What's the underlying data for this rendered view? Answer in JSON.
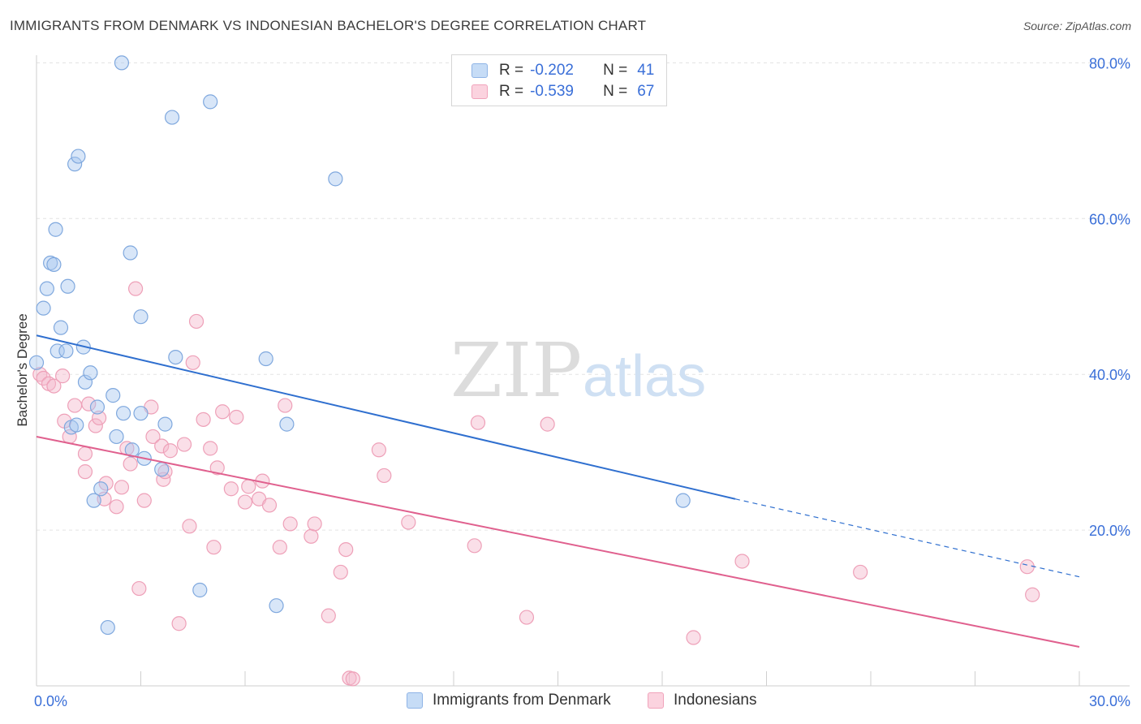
{
  "title": "IMMIGRANTS FROM DENMARK VS INDONESIAN BACHELOR'S DEGREE CORRELATION CHART",
  "source": "Source: ZipAtlas.com",
  "watermark": {
    "zip": "ZIP",
    "atlas": "atlas"
  },
  "legend": {
    "r_label": "R =",
    "n_label": "N =",
    "rows": [
      {
        "r": "-0.202",
        "n": "41",
        "color": "#a8c8f0"
      },
      {
        "r": "-0.539",
        "n": "67",
        "color": "#f5b8cb"
      }
    ]
  },
  "bottom_legend": [
    {
      "label": "Immigrants from Denmark",
      "color": "#a8c8f0"
    },
    {
      "label": "Indonesians",
      "color": "#f5b8cb"
    }
  ],
  "colors": {
    "blue_point": "#a8c8f0",
    "blue_line": "#2f6fcf",
    "pink_point": "#f5b8cb",
    "pink_line": "#e0608e",
    "axis_text": "#3a6fd8"
  },
  "chart_data": {
    "type": "scatter",
    "title": "IMMIGRANTS FROM DENMARK VS INDONESIAN BACHELOR'S DEGREE CORRELATION CHART",
    "xlabel": "",
    "ylabel": "Bachelor's Degree",
    "xlim": [
      0,
      30
    ],
    "ylim": [
      0,
      80
    ],
    "x_tick_labels": [
      "0.0%",
      "30.0%"
    ],
    "y_ticks": [
      20,
      40,
      60,
      80
    ],
    "y_tick_labels": [
      "20.0%",
      "40.0%",
      "60.0%",
      "80.0%"
    ],
    "grid": true,
    "legend_position": "top-center",
    "series": [
      {
        "name": "Immigrants from Denmark",
        "r": -0.202,
        "n": 41,
        "trend": {
          "x": [
            0,
            20.1
          ],
          "y": [
            45.0,
            24.0
          ],
          "dashed_to": [
            30,
            14.0
          ]
        },
        "points": [
          [
            0.0,
            41.5
          ],
          [
            0.2,
            48.5
          ],
          [
            0.3,
            51.0
          ],
          [
            0.4,
            54.3
          ],
          [
            0.5,
            54.1
          ],
          [
            0.55,
            58.6
          ],
          [
            0.7,
            46.0
          ],
          [
            0.6,
            43.0
          ],
          [
            0.85,
            43.0
          ],
          [
            0.9,
            51.3
          ],
          [
            1.1,
            67.0
          ],
          [
            1.2,
            68.0
          ],
          [
            1.35,
            43.5
          ],
          [
            1.4,
            39.0
          ],
          [
            1.55,
            40.2
          ],
          [
            1.0,
            33.2
          ],
          [
            1.15,
            33.5
          ],
          [
            1.75,
            35.8
          ],
          [
            1.85,
            25.3
          ],
          [
            1.65,
            23.8
          ],
          [
            2.2,
            37.3
          ],
          [
            2.3,
            32.0
          ],
          [
            2.45,
            80.0
          ],
          [
            2.5,
            35.0
          ],
          [
            2.75,
            30.3
          ],
          [
            2.7,
            55.6
          ],
          [
            3.0,
            47.4
          ],
          [
            3.0,
            35.0
          ],
          [
            3.1,
            29.2
          ],
          [
            3.7,
            33.6
          ],
          [
            3.9,
            73.0
          ],
          [
            4.0,
            42.2
          ],
          [
            3.6,
            27.8
          ],
          [
            5.0,
            75.0
          ],
          [
            4.7,
            12.3
          ],
          [
            2.05,
            7.5
          ],
          [
            6.6,
            42.0
          ],
          [
            6.9,
            10.3
          ],
          [
            7.2,
            33.6
          ],
          [
            8.6,
            65.1
          ],
          [
            18.6,
            23.8
          ]
        ]
      },
      {
        "name": "Indonesians",
        "r": -0.539,
        "n": 67,
        "trend": {
          "x": [
            0,
            30
          ],
          "y": [
            32.0,
            5.0
          ]
        },
        "points": [
          [
            0.1,
            40.0
          ],
          [
            0.2,
            39.5
          ],
          [
            0.35,
            38.8
          ],
          [
            0.5,
            38.5
          ],
          [
            0.75,
            39.8
          ],
          [
            0.8,
            34.0
          ],
          [
            0.95,
            32.0
          ],
          [
            1.1,
            36.0
          ],
          [
            1.4,
            27.5
          ],
          [
            1.4,
            29.8
          ],
          [
            1.5,
            36.2
          ],
          [
            1.7,
            33.4
          ],
          [
            1.8,
            34.4
          ],
          [
            1.95,
            24.0
          ],
          [
            2.0,
            26.0
          ],
          [
            2.3,
            23.0
          ],
          [
            2.45,
            25.5
          ],
          [
            2.6,
            30.5
          ],
          [
            2.7,
            28.5
          ],
          [
            2.85,
            51.0
          ],
          [
            2.95,
            12.5
          ],
          [
            3.1,
            23.8
          ],
          [
            3.3,
            35.8
          ],
          [
            3.35,
            32.0
          ],
          [
            3.6,
            30.8
          ],
          [
            3.65,
            26.5
          ],
          [
            3.7,
            27.5
          ],
          [
            3.85,
            30.2
          ],
          [
            4.1,
            8.0
          ],
          [
            4.25,
            31.0
          ],
          [
            4.4,
            20.5
          ],
          [
            4.5,
            41.5
          ],
          [
            4.6,
            46.8
          ],
          [
            4.8,
            34.2
          ],
          [
            5.0,
            30.5
          ],
          [
            5.1,
            17.8
          ],
          [
            5.2,
            28.0
          ],
          [
            5.35,
            35.2
          ],
          [
            5.6,
            25.3
          ],
          [
            5.75,
            34.5
          ],
          [
            6.0,
            23.6
          ],
          [
            6.1,
            25.6
          ],
          [
            6.4,
            24.0
          ],
          [
            6.5,
            26.3
          ],
          [
            6.7,
            23.2
          ],
          [
            7.0,
            17.8
          ],
          [
            7.15,
            36.0
          ],
          [
            7.3,
            20.8
          ],
          [
            7.9,
            19.2
          ],
          [
            8.0,
            20.8
          ],
          [
            8.4,
            9.0
          ],
          [
            8.75,
            14.6
          ],
          [
            8.9,
            17.5
          ],
          [
            9.0,
            1.0
          ],
          [
            9.1,
            0.9
          ],
          [
            9.85,
            30.3
          ],
          [
            10.0,
            27.0
          ],
          [
            10.7,
            21.0
          ],
          [
            12.6,
            18.0
          ],
          [
            12.7,
            33.8
          ],
          [
            14.1,
            8.8
          ],
          [
            14.7,
            33.6
          ],
          [
            18.9,
            6.2
          ],
          [
            20.3,
            16.0
          ],
          [
            23.7,
            14.6
          ],
          [
            28.5,
            15.3
          ],
          [
            28.65,
            11.7
          ]
        ]
      }
    ]
  }
}
